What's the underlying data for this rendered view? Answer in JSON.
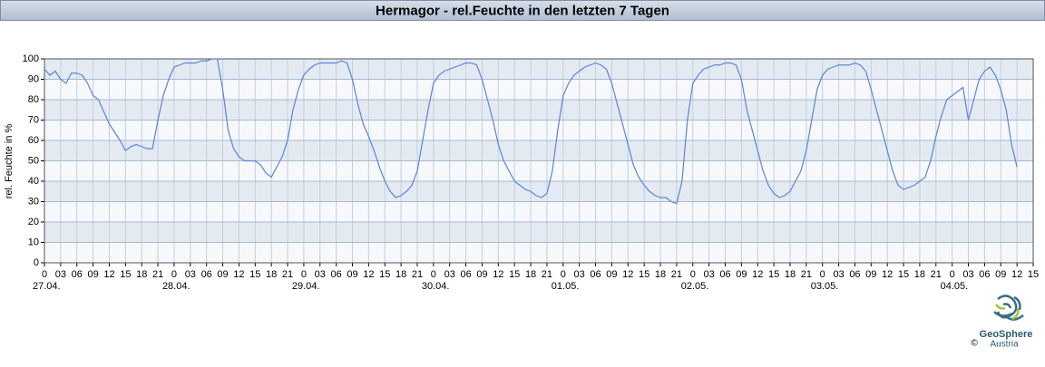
{
  "chart_data": {
    "type": "line",
    "title": "Hermagor - rel.Feuchte in den letzten 7 Tagen",
    "y_label": "rel. Feuchte in %",
    "color": "#5b85d6",
    "grid": true,
    "xlim": [
      0,
      183
    ],
    "ylim": [
      0,
      100
    ],
    "yticks": [
      0,
      10,
      20,
      30,
      40,
      50,
      60,
      70,
      80,
      90,
      100
    ],
    "xticks": [
      0,
      {
        "value": 3,
        "label": "03"
      },
      {
        "value": 6,
        "label": "06"
      },
      {
        "value": 9,
        "label": "09"
      },
      {
        "value": 12,
        "label": "12"
      },
      {
        "value": 15,
        "label": "15"
      },
      {
        "value": 18,
        "label": "18"
      },
      {
        "value": 21,
        "label": "21"
      },
      {
        "value": 24,
        "label": "0"
      },
      {
        "value": 27,
        "label": "03"
      },
      {
        "value": 30,
        "label": "06"
      },
      {
        "value": 33,
        "label": "09"
      },
      {
        "value": 36,
        "label": "12"
      },
      {
        "value": 39,
        "label": "15"
      },
      {
        "value": 42,
        "label": "18"
      },
      {
        "value": 45,
        "label": "21"
      },
      {
        "value": 48,
        "label": "0"
      },
      {
        "value": 51,
        "label": "03"
      },
      {
        "value": 54,
        "label": "06"
      },
      {
        "value": 57,
        "label": "09"
      },
      {
        "value": 60,
        "label": "12"
      },
      {
        "value": 63,
        "label": "15"
      },
      {
        "value": 66,
        "label": "18"
      },
      {
        "value": 69,
        "label": "21"
      },
      {
        "value": 72,
        "label": "0"
      },
      {
        "value": 75,
        "label": "03"
      },
      {
        "value": 78,
        "label": "06"
      },
      {
        "value": 81,
        "label": "09"
      },
      {
        "value": 84,
        "label": "12"
      },
      {
        "value": 87,
        "label": "15"
      },
      {
        "value": 90,
        "label": "18"
      },
      {
        "value": 93,
        "label": "21"
      },
      {
        "value": 96,
        "label": "0"
      },
      {
        "value": 99,
        "label": "03"
      },
      {
        "value": 102,
        "label": "06"
      },
      {
        "value": 105,
        "label": "09"
      },
      {
        "value": 108,
        "label": "12"
      },
      {
        "value": 111,
        "label": "15"
      },
      {
        "value": 114,
        "label": "18"
      },
      {
        "value": 117,
        "label": "21"
      },
      {
        "value": 120,
        "label": "0"
      },
      {
        "value": 123,
        "label": "03"
      },
      {
        "value": 126,
        "label": "06"
      },
      {
        "value": 129,
        "label": "09"
      },
      {
        "value": 132,
        "label": "12"
      },
      {
        "value": 135,
        "label": "15"
      },
      {
        "value": 138,
        "label": "18"
      },
      {
        "value": 141,
        "label": "21"
      },
      {
        "value": 144,
        "label": "0"
      },
      {
        "value": 147,
        "label": "03"
      },
      {
        "value": 150,
        "label": "06"
      },
      {
        "value": 153,
        "label": "09"
      },
      {
        "value": 156,
        "label": "12"
      },
      {
        "value": 159,
        "label": "15"
      },
      {
        "value": 162,
        "label": "18"
      },
      {
        "value": 165,
        "label": "21"
      },
      {
        "value": 168,
        "label": "0"
      },
      {
        "value": 171,
        "label": "03"
      },
      {
        "value": 174,
        "label": "06"
      },
      {
        "value": 177,
        "label": "09"
      },
      {
        "value": 180,
        "label": "12"
      },
      {
        "value": 183,
        "label": "15"
      }
    ],
    "xdates": [
      {
        "value": 0,
        "label": "27.04."
      },
      {
        "value": 24,
        "label": "28.04."
      },
      {
        "value": 48,
        "label": "29.04."
      },
      {
        "value": 72,
        "label": "30.04."
      },
      {
        "value": 96,
        "label": "01.05."
      },
      {
        "value": 120,
        "label": "02.05."
      },
      {
        "value": 144,
        "label": "03.05."
      },
      {
        "value": 168,
        "label": "04.05."
      }
    ],
    "x": [
      0,
      1,
      2,
      3,
      4,
      5,
      6,
      7,
      8,
      9,
      10,
      11,
      12,
      13,
      14,
      15,
      16,
      17,
      18,
      19,
      20,
      21,
      22,
      23,
      24,
      25,
      26,
      27,
      28,
      29,
      30,
      31,
      32,
      33,
      34,
      35,
      36,
      37,
      38,
      39,
      40,
      41,
      42,
      43,
      44,
      45,
      46,
      47,
      48,
      49,
      50,
      51,
      52,
      53,
      54,
      55,
      56,
      57,
      58,
      59,
      60,
      61,
      62,
      63,
      64,
      65,
      66,
      67,
      68,
      69,
      70,
      71,
      72,
      73,
      74,
      75,
      76,
      77,
      78,
      79,
      80,
      81,
      82,
      83,
      84,
      85,
      86,
      87,
      88,
      89,
      90,
      91,
      92,
      93,
      94,
      95,
      96,
      97,
      98,
      99,
      100,
      101,
      102,
      103,
      104,
      105,
      106,
      107,
      108,
      109,
      110,
      111,
      112,
      113,
      114,
      115,
      116,
      117,
      118,
      119,
      120,
      121,
      122,
      123,
      124,
      125,
      126,
      127,
      128,
      129,
      130,
      131,
      132,
      133,
      134,
      135,
      136,
      137,
      138,
      139,
      140,
      141,
      142,
      143,
      144,
      145,
      146,
      147,
      148,
      149,
      150,
      151,
      152,
      153,
      154,
      155,
      156,
      157,
      158,
      159,
      160,
      161,
      162,
      163,
      164,
      165,
      166,
      167,
      168,
      169,
      170,
      171,
      172,
      173,
      174,
      175,
      176,
      177,
      178,
      179,
      180
    ],
    "values": [
      95,
      92,
      94,
      90,
      88,
      93,
      93,
      92,
      88,
      82,
      80,
      74,
      68,
      64,
      60,
      55,
      57,
      58,
      57,
      56,
      56,
      70,
      82,
      90,
      96,
      97,
      98,
      98,
      98,
      99,
      99,
      100,
      100,
      85,
      65,
      56,
      52,
      50,
      50,
      50,
      48,
      44,
      42,
      47,
      52,
      60,
      75,
      85,
      92,
      95,
      97,
      98,
      98,
      98,
      98,
      99,
      98,
      90,
      78,
      68,
      62,
      55,
      47,
      40,
      35,
      32,
      33,
      35,
      38,
      45,
      60,
      75,
      88,
      92,
      94,
      95,
      96,
      97,
      98,
      98,
      97,
      90,
      80,
      70,
      58,
      50,
      45,
      40,
      38,
      36,
      35,
      33,
      32,
      34,
      45,
      65,
      82,
      88,
      92,
      94,
      96,
      97,
      98,
      97,
      95,
      88,
      78,
      68,
      58,
      48,
      42,
      38,
      35,
      33,
      32,
      32,
      30,
      29,
      40,
      70,
      88,
      92,
      95,
      96,
      97,
      97,
      98,
      98,
      97,
      90,
      75,
      65,
      55,
      45,
      38,
      34,
      32,
      33,
      35,
      40,
      45,
      55,
      70,
      85,
      92,
      95,
      96,
      97,
      97,
      97,
      98,
      97,
      94,
      85,
      75,
      65,
      55,
      45,
      38,
      36,
      37,
      38,
      40,
      42,
      50,
      62,
      72,
      80,
      82,
      84,
      86,
      70,
      80,
      90,
      94,
      96,
      92,
      85,
      75,
      58,
      47
    ]
  },
  "logo": {
    "name": "GeoSphere",
    "sub": "Austria",
    "copyright": "©"
  }
}
